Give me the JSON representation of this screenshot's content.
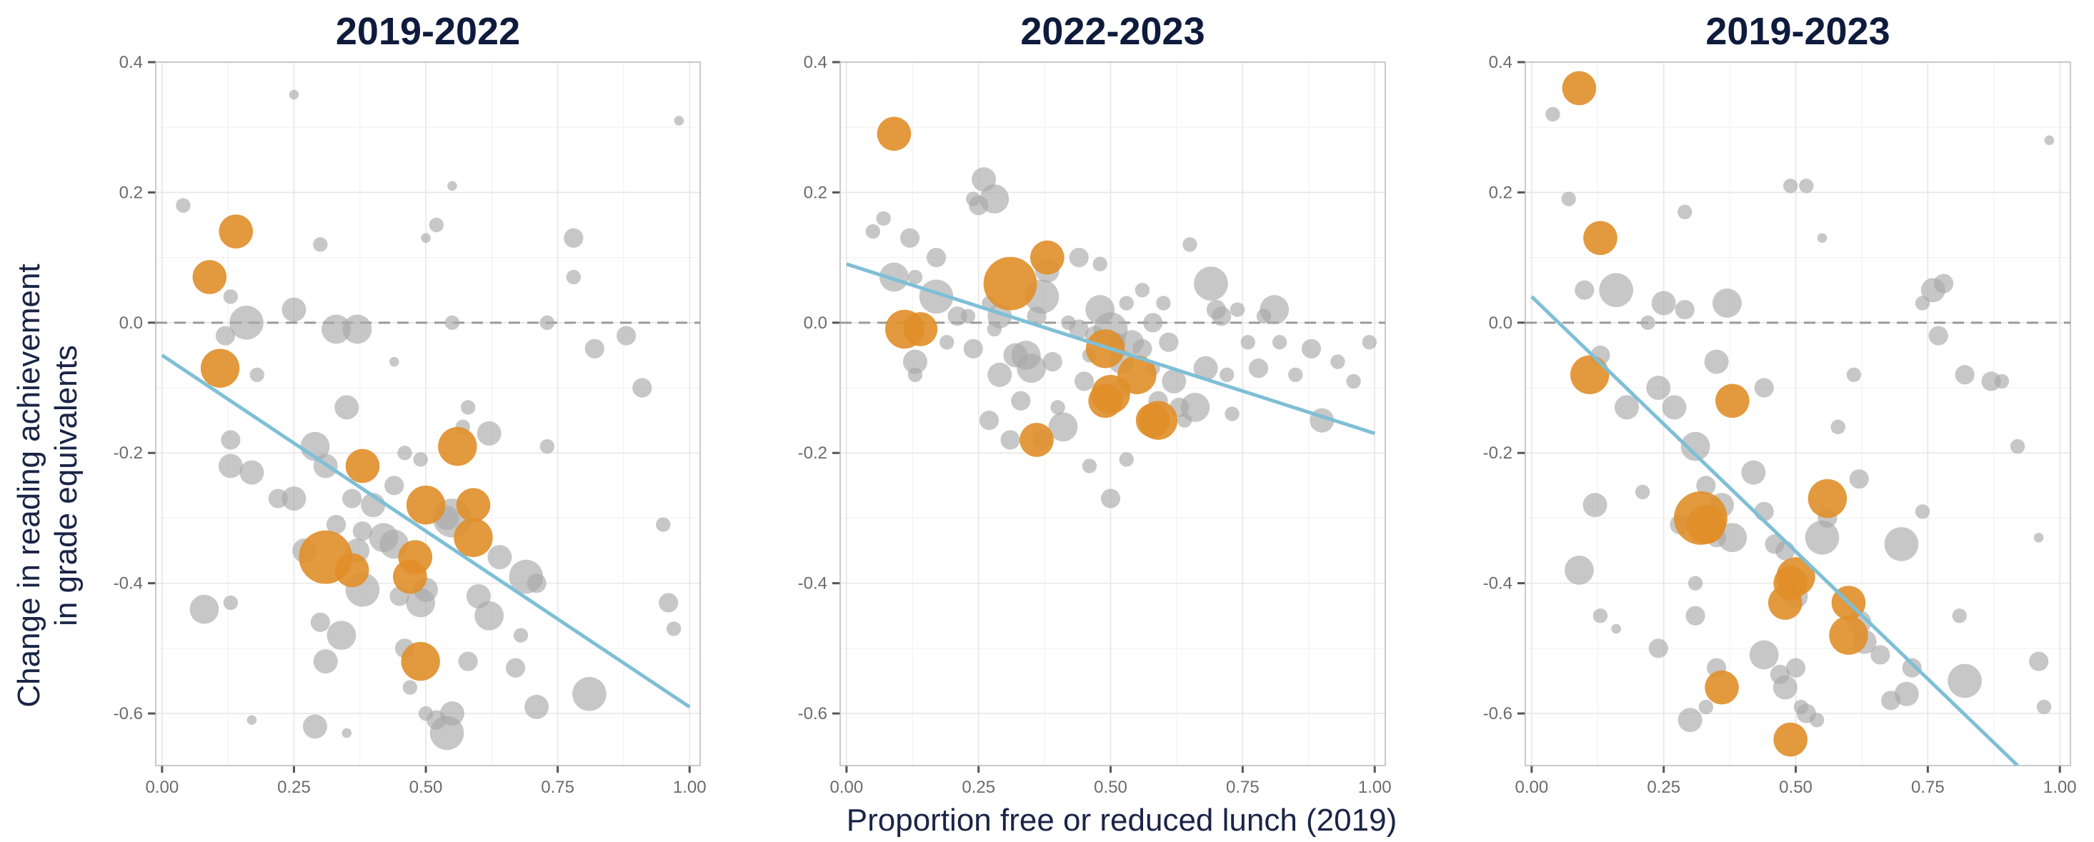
{
  "figure": {
    "ylabel_line1": "Change in reading  achievement",
    "ylabel_line2": "in grade equivalents",
    "xlabel": "Proportion free or reduced lunch (2019)"
  },
  "colors": {
    "gray_points": "#a9a9a9",
    "highlight_points": "#e08e28",
    "fit_line": "#7fbfd6",
    "title": "#0f1b3d"
  },
  "chart_data": [
    {
      "type": "scatter",
      "title": "2019-2022",
      "xlim": [
        0,
        1
      ],
      "ylim": [
        -0.68,
        0.4
      ],
      "xticks": [
        "0.00",
        "0.25",
        "0.50",
        "0.75",
        "1.00"
      ],
      "yticks": [
        "0.4",
        "0.2",
        "0.0",
        "-0.2",
        "-0.4",
        "-0.6"
      ],
      "reference_line_y": 0,
      "fit": {
        "x": [
          0,
          1
        ],
        "y": [
          -0.05,
          -0.59
        ]
      },
      "highlight": [
        [
          0.09,
          0.07,
          7
        ],
        [
          0.14,
          0.14,
          7
        ],
        [
          0.11,
          -0.07,
          8
        ],
        [
          0.38,
          -0.22,
          7
        ],
        [
          0.31,
          -0.36,
          11
        ],
        [
          0.36,
          -0.38,
          7
        ],
        [
          0.56,
          -0.19,
          8
        ],
        [
          0.5,
          -0.28,
          8
        ],
        [
          0.59,
          -0.28,
          7
        ],
        [
          0.59,
          -0.33,
          8
        ],
        [
          0.48,
          -0.36,
          7
        ],
        [
          0.47,
          -0.39,
          7
        ],
        [
          0.49,
          -0.52,
          8
        ]
      ],
      "gray": [
        [
          0.04,
          0.18,
          3
        ],
        [
          0.16,
          0.0,
          7
        ],
        [
          0.25,
          0.35,
          2
        ],
        [
          0.3,
          0.12,
          3
        ],
        [
          0.33,
          -0.01,
          6
        ],
        [
          0.37,
          -0.01,
          6
        ],
        [
          0.25,
          0.02,
          5
        ],
        [
          0.13,
          0.04,
          3
        ],
        [
          0.12,
          -0.02,
          4
        ],
        [
          0.18,
          -0.08,
          3
        ],
        [
          0.13,
          -0.18,
          4
        ],
        [
          0.13,
          -0.22,
          5
        ],
        [
          0.17,
          -0.23,
          5
        ],
        [
          0.22,
          -0.27,
          4
        ],
        [
          0.25,
          -0.27,
          5
        ],
        [
          0.29,
          -0.19,
          6
        ],
        [
          0.31,
          -0.22,
          5
        ],
        [
          0.35,
          -0.13,
          5
        ],
        [
          0.36,
          -0.27,
          4
        ],
        [
          0.33,
          -0.31,
          4
        ],
        [
          0.38,
          -0.32,
          4
        ],
        [
          0.4,
          -0.28,
          5
        ],
        [
          0.27,
          -0.35,
          5
        ],
        [
          0.37,
          -0.35,
          5
        ],
        [
          0.44,
          -0.34,
          6
        ],
        [
          0.38,
          -0.41,
          7
        ],
        [
          0.34,
          -0.48,
          6
        ],
        [
          0.3,
          -0.46,
          4
        ],
        [
          0.31,
          -0.52,
          5
        ],
        [
          0.29,
          -0.62,
          5
        ],
        [
          0.35,
          -0.63,
          2
        ],
        [
          0.08,
          -0.44,
          6
        ],
        [
          0.13,
          -0.43,
          3
        ],
        [
          0.17,
          -0.61,
          2
        ],
        [
          0.55,
          0.21,
          2
        ],
        [
          0.52,
          0.15,
          3
        ],
        [
          0.5,
          0.13,
          2
        ],
        [
          0.55,
          0.0,
          3
        ],
        [
          0.44,
          -0.06,
          2
        ],
        [
          0.58,
          -0.13,
          3
        ],
        [
          0.57,
          -0.16,
          3
        ],
        [
          0.62,
          -0.17,
          5
        ],
        [
          0.55,
          -0.3,
          8
        ],
        [
          0.54,
          -0.3,
          5
        ],
        [
          0.64,
          -0.36,
          5
        ],
        [
          0.6,
          -0.42,
          5
        ],
        [
          0.62,
          -0.45,
          6
        ],
        [
          0.58,
          -0.52,
          4
        ],
        [
          0.55,
          -0.6,
          5
        ],
        [
          0.54,
          -0.63,
          7
        ],
        [
          0.52,
          -0.61,
          4
        ],
        [
          0.5,
          -0.6,
          3
        ],
        [
          0.46,
          -0.5,
          4
        ],
        [
          0.47,
          -0.56,
          3
        ],
        [
          0.49,
          -0.43,
          6
        ],
        [
          0.5,
          -0.41,
          5
        ],
        [
          0.45,
          -0.42,
          4
        ],
        [
          0.42,
          -0.33,
          6
        ],
        [
          0.44,
          -0.25,
          4
        ],
        [
          0.46,
          -0.2,
          3
        ],
        [
          0.49,
          -0.21,
          3
        ],
        [
          0.69,
          -0.39,
          7
        ],
        [
          0.71,
          -0.4,
          4
        ],
        [
          0.71,
          -0.59,
          5
        ],
        [
          0.67,
          -0.53,
          4
        ],
        [
          0.68,
          -0.48,
          3
        ],
        [
          0.73,
          -0.19,
          3
        ],
        [
          0.73,
          0.0,
          3
        ],
        [
          0.78,
          0.13,
          4
        ],
        [
          0.78,
          0.07,
          3
        ],
        [
          0.82,
          -0.04,
          4
        ],
        [
          0.81,
          -0.57,
          7
        ],
        [
          0.88,
          -0.02,
          4
        ],
        [
          0.91,
          -0.1,
          4
        ],
        [
          0.95,
          -0.31,
          3
        ],
        [
          0.96,
          -0.43,
          4
        ],
        [
          0.97,
          -0.47,
          3
        ],
        [
          0.98,
          0.31,
          2
        ]
      ]
    },
    {
      "type": "scatter",
      "title": "2022-2023",
      "xlim": [
        0,
        1
      ],
      "ylim": [
        -0.68,
        0.4
      ],
      "xticks": [
        "0.00",
        "0.25",
        "0.50",
        "0.75",
        "1.00"
      ],
      "yticks": [
        "0.4",
        "0.2",
        "0.0",
        "-0.2",
        "-0.4",
        "-0.6"
      ],
      "reference_line_y": 0,
      "fit": {
        "x": [
          0,
          1
        ],
        "y": [
          0.09,
          -0.17
        ]
      },
      "highlight": [
        [
          0.09,
          0.29,
          7
        ],
        [
          0.11,
          -0.01,
          8
        ],
        [
          0.14,
          -0.01,
          7
        ],
        [
          0.31,
          0.06,
          11
        ],
        [
          0.38,
          0.1,
          7
        ],
        [
          0.36,
          -0.18,
          7
        ],
        [
          0.49,
          -0.04,
          8
        ],
        [
          0.5,
          -0.11,
          8
        ],
        [
          0.49,
          -0.12,
          7
        ],
        [
          0.55,
          -0.08,
          8
        ],
        [
          0.59,
          -0.15,
          8
        ],
        [
          0.58,
          -0.15,
          7
        ]
      ],
      "gray": [
        [
          0.05,
          0.14,
          3
        ],
        [
          0.07,
          0.16,
          3
        ],
        [
          0.09,
          0.07,
          6
        ],
        [
          0.12,
          0.13,
          4
        ],
        [
          0.13,
          0.07,
          3
        ],
        [
          0.13,
          -0.06,
          5
        ],
        [
          0.13,
          -0.08,
          3
        ],
        [
          0.17,
          0.04,
          7
        ],
        [
          0.17,
          0.1,
          4
        ],
        [
          0.19,
          -0.03,
          3
        ],
        [
          0.21,
          0.01,
          4
        ],
        [
          0.24,
          0.19,
          3
        ],
        [
          0.25,
          0.18,
          4
        ],
        [
          0.26,
          0.22,
          5
        ],
        [
          0.28,
          0.19,
          6
        ],
        [
          0.23,
          0.01,
          3
        ],
        [
          0.24,
          -0.04,
          4
        ],
        [
          0.27,
          0.03,
          3
        ],
        [
          0.28,
          -0.01,
          3
        ],
        [
          0.27,
          -0.15,
          4
        ],
        [
          0.29,
          0.01,
          5
        ],
        [
          0.29,
          -0.08,
          5
        ],
        [
          0.31,
          -0.18,
          4
        ],
        [
          0.32,
          -0.05,
          5
        ],
        [
          0.33,
          -0.12,
          4
        ],
        [
          0.34,
          -0.05,
          6
        ],
        [
          0.35,
          -0.07,
          6
        ],
        [
          0.36,
          0.01,
          4
        ],
        [
          0.37,
          0.04,
          7
        ],
        [
          0.38,
          0.08,
          5
        ],
        [
          0.39,
          -0.06,
          4
        ],
        [
          0.4,
          -0.13,
          3
        ],
        [
          0.42,
          0.0,
          3
        ],
        [
          0.44,
          -0.01,
          4
        ],
        [
          0.44,
          0.1,
          4
        ],
        [
          0.45,
          -0.09,
          4
        ],
        [
          0.46,
          -0.05,
          3
        ],
        [
          0.47,
          -0.02,
          4
        ],
        [
          0.48,
          0.09,
          3
        ],
        [
          0.48,
          0.02,
          6
        ],
        [
          0.5,
          -0.01,
          7
        ],
        [
          0.51,
          -0.03,
          4
        ],
        [
          0.52,
          -0.06,
          5
        ],
        [
          0.52,
          -0.1,
          4
        ],
        [
          0.53,
          0.03,
          3
        ],
        [
          0.54,
          -0.03,
          5
        ],
        [
          0.56,
          -0.04,
          4
        ],
        [
          0.56,
          0.05,
          3
        ],
        [
          0.58,
          0.0,
          4
        ],
        [
          0.58,
          -0.07,
          3
        ],
        [
          0.59,
          -0.12,
          4
        ],
        [
          0.6,
          0.03,
          3
        ],
        [
          0.61,
          -0.03,
          4
        ],
        [
          0.62,
          -0.09,
          5
        ],
        [
          0.63,
          -0.13,
          4
        ],
        [
          0.64,
          -0.15,
          3
        ],
        [
          0.65,
          0.12,
          3
        ],
        [
          0.66,
          -0.13,
          6
        ],
        [
          0.68,
          -0.07,
          5
        ],
        [
          0.69,
          0.06,
          7
        ],
        [
          0.7,
          0.02,
          4
        ],
        [
          0.71,
          0.01,
          4
        ],
        [
          0.72,
          -0.08,
          3
        ],
        [
          0.73,
          -0.14,
          3
        ],
        [
          0.74,
          0.02,
          3
        ],
        [
          0.76,
          -0.03,
          3
        ],
        [
          0.78,
          -0.07,
          4
        ],
        [
          0.79,
          0.01,
          3
        ],
        [
          0.81,
          0.02,
          6
        ],
        [
          0.82,
          -0.03,
          3
        ],
        [
          0.85,
          -0.08,
          3
        ],
        [
          0.88,
          -0.04,
          4
        ],
        [
          0.9,
          -0.15,
          5
        ],
        [
          0.93,
          -0.06,
          3
        ],
        [
          0.96,
          -0.09,
          3
        ],
        [
          0.99,
          -0.03,
          3
        ],
        [
          0.5,
          -0.27,
          4
        ],
        [
          0.46,
          -0.22,
          3
        ],
        [
          0.53,
          -0.21,
          3
        ],
        [
          0.41,
          -0.16,
          6
        ],
        [
          0.37,
          -0.18,
          4
        ]
      ]
    },
    {
      "type": "scatter",
      "title": "2019-2023",
      "xlim": [
        0,
        1
      ],
      "ylim": [
        -0.68,
        0.4
      ],
      "xticks": [
        "0.00",
        "0.25",
        "0.50",
        "0.75",
        "1.00"
      ],
      "yticks": [
        "0.4",
        "0.2",
        "0.0",
        "-0.2",
        "-0.4",
        "-0.6"
      ],
      "reference_line_y": 0,
      "fit": {
        "x": [
          0,
          0.92
        ],
        "y": [
          0.04,
          -0.68
        ]
      },
      "highlight": [
        [
          0.09,
          0.36,
          7
        ],
        [
          0.13,
          0.13,
          7
        ],
        [
          0.11,
          -0.08,
          8
        ],
        [
          0.38,
          -0.12,
          7
        ],
        [
          0.32,
          -0.3,
          11
        ],
        [
          0.33,
          -0.31,
          8
        ],
        [
          0.36,
          -0.56,
          7
        ],
        [
          0.56,
          -0.27,
          8
        ],
        [
          0.5,
          -0.39,
          8
        ],
        [
          0.49,
          -0.4,
          7
        ],
        [
          0.48,
          -0.43,
          7
        ],
        [
          0.6,
          -0.43,
          7
        ],
        [
          0.6,
          -0.48,
          8
        ],
        [
          0.49,
          -0.64,
          7
        ]
      ],
      "gray": [
        [
          0.04,
          0.32,
          3
        ],
        [
          0.07,
          0.19,
          3
        ],
        [
          0.1,
          0.05,
          4
        ],
        [
          0.13,
          -0.05,
          4
        ],
        [
          0.16,
          0.05,
          7
        ],
        [
          0.22,
          0.0,
          3
        ],
        [
          0.25,
          0.03,
          5
        ],
        [
          0.29,
          0.02,
          4
        ],
        [
          0.29,
          0.17,
          3
        ],
        [
          0.18,
          -0.13,
          5
        ],
        [
          0.21,
          -0.26,
          3
        ],
        [
          0.24,
          -0.1,
          5
        ],
        [
          0.27,
          -0.13,
          5
        ],
        [
          0.28,
          -0.31,
          4
        ],
        [
          0.31,
          -0.19,
          6
        ],
        [
          0.33,
          -0.25,
          4
        ],
        [
          0.35,
          -0.06,
          5
        ],
        [
          0.37,
          0.03,
          6
        ],
        [
          0.38,
          -0.33,
          6
        ],
        [
          0.35,
          -0.33,
          4
        ],
        [
          0.36,
          -0.28,
          5
        ],
        [
          0.42,
          -0.23,
          5
        ],
        [
          0.44,
          -0.1,
          4
        ],
        [
          0.44,
          -0.29,
          4
        ],
        [
          0.46,
          -0.34,
          4
        ],
        [
          0.48,
          -0.35,
          4
        ],
        [
          0.5,
          -0.42,
          5
        ],
        [
          0.44,
          -0.51,
          6
        ],
        [
          0.47,
          -0.54,
          4
        ],
        [
          0.5,
          -0.53,
          4
        ],
        [
          0.48,
          -0.56,
          5
        ],
        [
          0.51,
          -0.59,
          3
        ],
        [
          0.52,
          -0.6,
          4
        ],
        [
          0.54,
          -0.61,
          3
        ],
        [
          0.35,
          -0.53,
          4
        ],
        [
          0.33,
          -0.59,
          3
        ],
        [
          0.3,
          -0.61,
          5
        ],
        [
          0.31,
          -0.45,
          4
        ],
        [
          0.31,
          -0.4,
          3
        ],
        [
          0.24,
          -0.5,
          4
        ],
        [
          0.16,
          -0.47,
          2
        ],
        [
          0.13,
          -0.45,
          3
        ],
        [
          0.09,
          -0.38,
          6
        ],
        [
          0.12,
          -0.28,
          5
        ],
        [
          0.49,
          0.21,
          3
        ],
        [
          0.52,
          0.21,
          3
        ],
        [
          0.55,
          0.13,
          2
        ],
        [
          0.58,
          -0.16,
          3
        ],
        [
          0.55,
          -0.33,
          7
        ],
        [
          0.56,
          -0.3,
          4
        ],
        [
          0.62,
          -0.24,
          4
        ],
        [
          0.61,
          -0.08,
          3
        ],
        [
          0.66,
          -0.51,
          4
        ],
        [
          0.68,
          -0.58,
          4
        ],
        [
          0.7,
          -0.34,
          7
        ],
        [
          0.71,
          -0.57,
          5
        ],
        [
          0.72,
          -0.53,
          4
        ],
        [
          0.74,
          -0.29,
          3
        ],
        [
          0.76,
          0.05,
          5
        ],
        [
          0.78,
          0.06,
          4
        ],
        [
          0.77,
          -0.02,
          4
        ],
        [
          0.82,
          -0.08,
          4
        ],
        [
          0.82,
          -0.55,
          7
        ],
        [
          0.81,
          -0.45,
          3
        ],
        [
          0.87,
          -0.09,
          4
        ],
        [
          0.89,
          -0.09,
          3
        ],
        [
          0.92,
          -0.19,
          3
        ],
        [
          0.96,
          -0.52,
          4
        ],
        [
          0.97,
          -0.59,
          3
        ],
        [
          0.98,
          0.28,
          2
        ],
        [
          0.96,
          -0.33,
          2
        ],
        [
          0.62,
          -0.46,
          5
        ],
        [
          0.63,
          -0.49,
          5
        ],
        [
          0.74,
          0.03,
          3
        ]
      ]
    }
  ]
}
